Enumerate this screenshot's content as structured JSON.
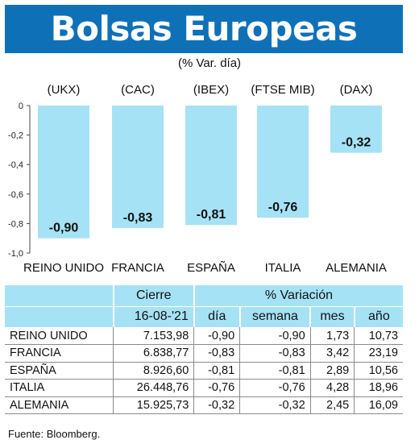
{
  "header": {
    "title": "Bolsas Europeas",
    "subtitle": "(% Var. día)"
  },
  "chart_data": {
    "type": "bar",
    "categories": [
      "REINO UNIDO",
      "FRANCIA",
      "ESPAÑA",
      "ITALIA",
      "ALEMANIA"
    ],
    "index_codes": [
      "(UKX)",
      "(CAC)",
      "(IBEX)",
      "(FTSE MIB)",
      "(DAX)"
    ],
    "values": [
      -0.9,
      -0.83,
      -0.81,
      -0.76,
      -0.32
    ],
    "value_labels": [
      "-0,90",
      "-0,83",
      "-0,81",
      "-0,76",
      "-0,32"
    ],
    "yticks": [
      0,
      -0.2,
      -0.4,
      -0.6,
      -0.8,
      -1.0
    ],
    "ytick_labels": [
      "0",
      "-0,2",
      "-0,4",
      "-0,6",
      "-0,8",
      "-1,0"
    ],
    "ylim": [
      -1.0,
      0
    ],
    "bar_color": "#a6e2f5",
    "title": "Bolsas Europeas",
    "xlabel": "",
    "ylabel": ""
  },
  "table": {
    "header_cierre": "Cierre",
    "header_variacion": "% Variación",
    "date": "16-08-'21",
    "col_dia": "día",
    "col_semana": "semana",
    "col_mes": "mes",
    "col_anio": "año",
    "rows": [
      {
        "name": "REINO UNIDO",
        "cierre": "7.153,98",
        "dia": "-0,90",
        "semana": "-0,90",
        "mes": "1,73",
        "anio": "10,73"
      },
      {
        "name": "FRANCIA",
        "cierre": "6.838,77",
        "dia": "-0,83",
        "semana": "-0,83",
        "mes": "3,42",
        "anio": "23,19"
      },
      {
        "name": "ESPAÑA",
        "cierre": "8.926,60",
        "dia": "-0,81",
        "semana": "-0,81",
        "mes": "2,89",
        "anio": "10,56"
      },
      {
        "name": "ITALIA",
        "cierre": "26.448,76",
        "dia": "-0,76",
        "semana": "-0,76",
        "mes": "4,28",
        "anio": "18,96"
      },
      {
        "name": "ALEMANIA",
        "cierre": "15.925,73",
        "dia": "-0,32",
        "semana": "-0,32",
        "mes": "2,45",
        "anio": "16,09"
      }
    ]
  },
  "source": "Fuente: Bloomberg.",
  "colors": {
    "banner": "#0e71b8",
    "accent": "#a6e2f5"
  }
}
